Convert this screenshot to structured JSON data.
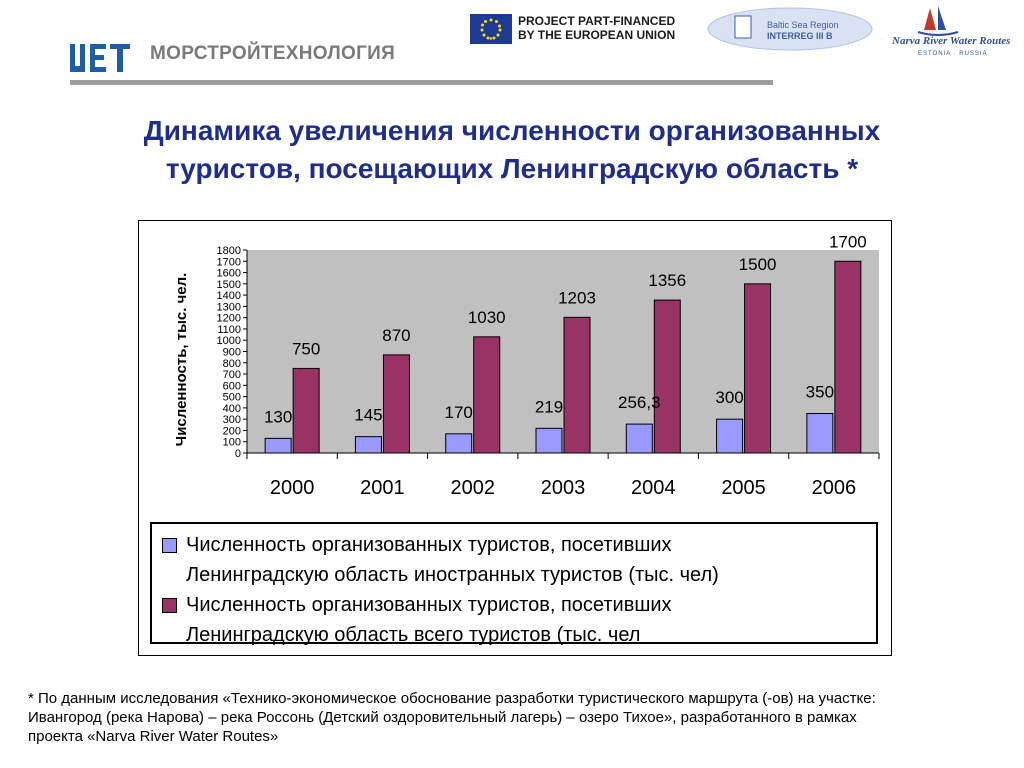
{
  "header": {
    "company_name": "МОРСТРОЙТЕХНОЛОГИЯ",
    "eu_line1": "PROJECT PART-FINANCED",
    "eu_line2": "BY THE EUROPEAN UNION",
    "baltic_line1": "Baltic Sea Region",
    "baltic_line2": "INTERREG III B",
    "narva_line1": "Narva River Water Routes",
    "narva_line2": "ESTONIA · RUSSIA"
  },
  "title_line1": "Динамика увеличения численности организованных",
  "title_line2": "туристов, посещающих Ленинградскую область *",
  "colors": {
    "title": "#1f2d8c",
    "series_foreign": "#9999ff",
    "series_total": "#993366",
    "plot_background": "#c0c0c0"
  },
  "chart_data": {
    "type": "bar",
    "ylabel": "Численность, тыс. чел.",
    "xlabel": "",
    "ylim": [
      0,
      1800
    ],
    "yticks": [
      0,
      100,
      200,
      300,
      400,
      500,
      600,
      700,
      800,
      900,
      1000,
      1100,
      1200,
      1300,
      1400,
      1500,
      1600,
      1700,
      1800
    ],
    "grid": false,
    "legend_position": "bottom",
    "categories": [
      "2000",
      "2001",
      "2002",
      "2003",
      "2004",
      "2005",
      "2006"
    ],
    "series": [
      {
        "name": "Численность организованных туристов, посетивших Ленинградскую область иностранных туристов (тыс. чел)",
        "values": [
          130,
          145,
          170,
          219,
          256.3,
          300,
          350
        ],
        "data_labels": [
          "130",
          "145",
          "170",
          "219",
          "256,3",
          "300",
          "350"
        ]
      },
      {
        "name": "Численность организованных туристов, посетивших Ленинградскую область всего туристов (тыс. чел)",
        "values": [
          750,
          870,
          1030,
          1203,
          1356,
          1500,
          1700
        ],
        "data_labels": [
          "750",
          "870",
          "1030",
          "1203",
          "1356",
          "1500",
          "1700"
        ]
      }
    ]
  },
  "legend": {
    "item1_line1": "Численность организованных туристов, посетивших",
    "item1_line2": "Ленинградскую область иностранных туристов (тыс. чел)",
    "item2_line1": "Численность организованных туристов, посетивших",
    "item2_line2": "Ленинградскую область всего туристов (тыс. чел"
  },
  "footnote": {
    "line1": "* По данным исследования «Технико-экономическое обоснование разработки туристического маршрута (-ов) на участке:",
    "line2": "Ивангород (река Нарова) – река Россонь (Детский оздоровительный лагерь) – озеро Тихое», разработанного в рамках",
    "line3": "проекта «Narva River Water Routes»"
  }
}
